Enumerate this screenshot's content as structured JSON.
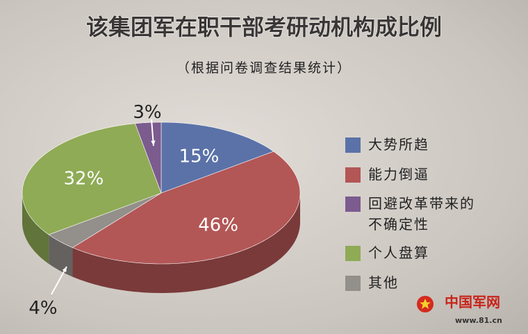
{
  "chart_data": {
    "type": "pie",
    "title": "该集团军在职干部考研动机构成比例",
    "subtitle": "（根据问卷调查结果统计）",
    "categories": [
      "大势所趋",
      "能力倒逼",
      "回避改革带来的不确定性",
      "个人盘算",
      "其他"
    ],
    "values": [
      15,
      46,
      3,
      32,
      4
    ],
    "value_labels": [
      "15%",
      "46%",
      "3%",
      "32%",
      "4%"
    ],
    "colors": [
      "#5b72a8",
      "#b35656",
      "#7c5b8e",
      "#8fab56",
      "#938f8b"
    ],
    "legend": "right"
  },
  "watermark": {
    "text": "中国军网",
    "url": "www.81.cn"
  }
}
